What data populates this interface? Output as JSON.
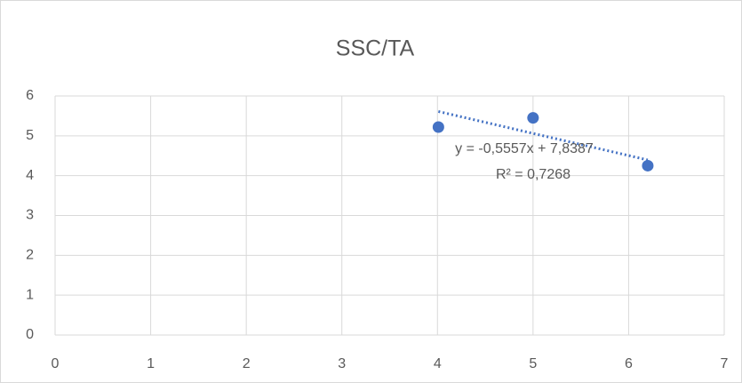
{
  "chart_data": {
    "type": "scatter",
    "title": "SSC/TA",
    "series": [
      {
        "name": "SSC/TA",
        "color": "#4472c4",
        "x": [
          4.01,
          5.0,
          6.2
        ],
        "values": [
          5.22,
          5.45,
          4.25
        ]
      }
    ],
    "trendline": {
      "slope": -0.5557,
      "intercept": 7.8387,
      "color": "#4472c4",
      "equation": "y = -0,5557x + 7,8387",
      "r2": 0.7268,
      "r2_label": "R² = 0,7268"
    },
    "xlim": [
      0,
      7
    ],
    "xticks": [
      0,
      1,
      2,
      3,
      4,
      5,
      6,
      7
    ],
    "ylim": [
      0,
      6
    ],
    "yticks": [
      0,
      1,
      2,
      3,
      4,
      5,
      6
    ],
    "grid": true
  }
}
